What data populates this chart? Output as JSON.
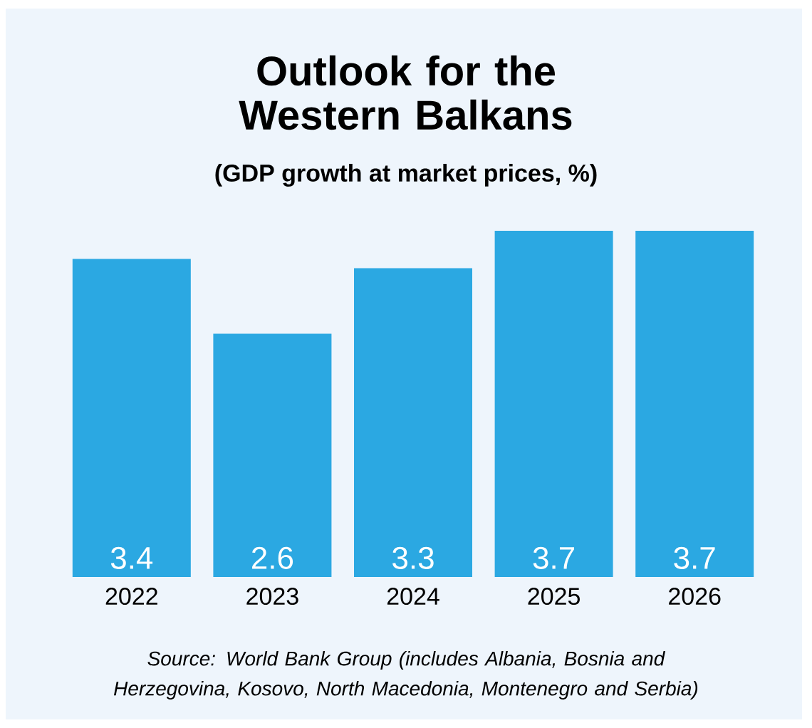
{
  "chart_data": {
    "type": "bar",
    "title": "Outlook for the Western Balkans",
    "subtitle": "(GDP growth at market prices, %)",
    "categories": [
      "2022",
      "2023",
      "2024",
      "2025",
      "2026"
    ],
    "values": [
      3.4,
      2.6,
      3.3,
      3.7,
      3.7
    ],
    "color": "#2ba8e2",
    "data_labels": true,
    "annotations": [
      "Source: World Bank Group (includes Albania, Bosnia and Herzegovina, Kosovo, North Macedonia, Montenegro and Serbia)"
    ]
  }
}
